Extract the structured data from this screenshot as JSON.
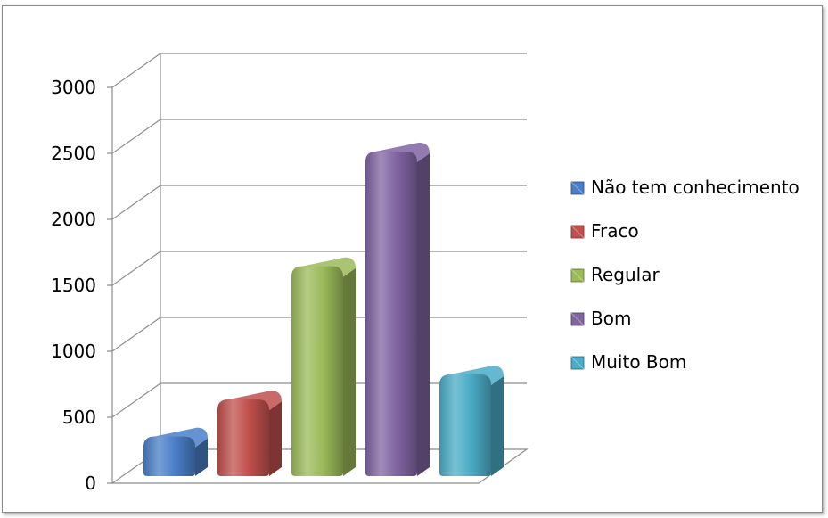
{
  "chart_data": {
    "type": "bar",
    "style": "3d-cylinder-rounded",
    "categories": [
      "Não tem conhecimento",
      "Fraco",
      "Regular",
      "Bom",
      "Muito Bom"
    ],
    "values": [
      300,
      580,
      1590,
      2460,
      770
    ],
    "colors": [
      "#4a7fc8",
      "#c0504d",
      "#9bbb59",
      "#8064a2",
      "#4bacc6"
    ],
    "yticks": [
      0,
      500,
      1000,
      1500,
      2000,
      2500,
      3000
    ],
    "ylim": [
      0,
      3000
    ],
    "grid": true,
    "legend": {
      "position": "right",
      "entries": [
        "Não tem conhecimento",
        "Fraco",
        "Regular",
        "Bom",
        "Muito Bom"
      ]
    }
  }
}
